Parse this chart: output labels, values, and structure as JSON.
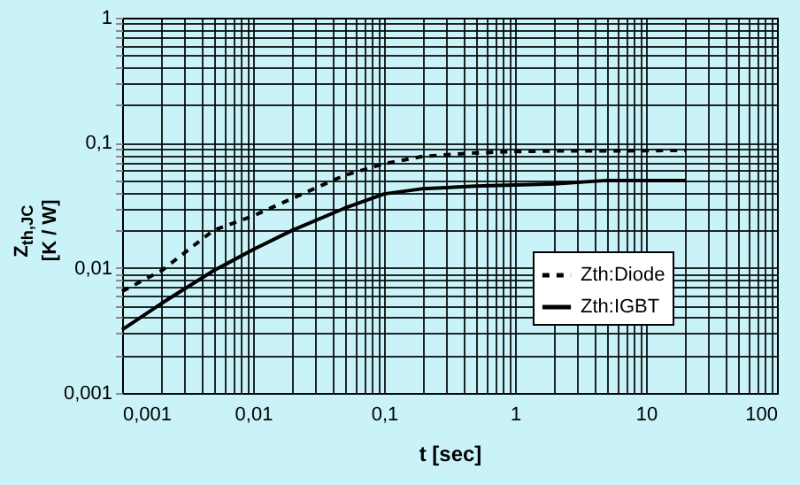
{
  "chart_data": {
    "type": "line",
    "xlabel": "t [sec]",
    "ylabel": "Z$_{th,JC}$ [K / W]",
    "log": "xy",
    "grid": true,
    "legend": "bottom right",
    "marker": "none",
    "xlim": [
      0.001,
      100
    ],
    "ylim": [
      0.001,
      1
    ],
    "xticks": [
      {
        "value": 0.001,
        "label": "0,001"
      },
      {
        "value": 0.002,
        "label": null
      },
      {
        "value": 0.003,
        "label": null
      },
      {
        "value": 0.004,
        "label": null
      },
      {
        "value": 0.005,
        "label": null
      },
      {
        "value": 0.006,
        "label": null
      },
      {
        "value": 0.007,
        "label": null
      },
      {
        "value": 0.008,
        "label": null
      },
      {
        "value": 0.009,
        "label": null
      },
      {
        "value": 0.01,
        "label": "0,01"
      },
      {
        "value": 0.02,
        "label": null
      },
      {
        "value": 0.03,
        "label": null
      },
      {
        "value": 0.04,
        "label": null
      },
      {
        "value": 0.05,
        "label": null
      },
      {
        "value": 0.06,
        "label": null
      },
      {
        "value": 0.07,
        "label": null
      },
      {
        "value": 0.08,
        "label": null
      },
      {
        "value": 0.09,
        "label": null
      },
      {
        "value": 0.1,
        "label": "0,1"
      },
      {
        "value": 0.2,
        "label": null
      },
      {
        "value": 0.3,
        "label": null
      },
      {
        "value": 0.4,
        "label": null
      },
      {
        "value": 0.5,
        "label": null
      },
      {
        "value": 0.6,
        "label": null
      },
      {
        "value": 0.7,
        "label": null
      },
      {
        "value": 0.8,
        "label": null
      },
      {
        "value": 0.9,
        "label": null
      },
      1,
      {
        "value": 2,
        "label": null
      },
      {
        "value": 3,
        "label": null
      },
      {
        "value": 4,
        "label": null
      },
      {
        "value": 5,
        "label": null
      },
      {
        "value": 6,
        "label": null
      },
      {
        "value": 7,
        "label": null
      },
      {
        "value": 8,
        "label": null
      },
      {
        "value": 9,
        "label": null
      },
      10,
      {
        "value": 20,
        "label": null
      },
      {
        "value": 30,
        "label": null
      },
      {
        "value": 40,
        "label": null
      },
      {
        "value": 50,
        "label": null
      },
      {
        "value": 60,
        "label": null
      },
      {
        "value": 70,
        "label": null
      },
      {
        "value": 80,
        "label": null
      },
      {
        "value": 90,
        "label": null
      },
      100
    ],
    "yticks": [
      {
        "value": 0.001,
        "label": "0,001"
      },
      {
        "value": 0.002,
        "label": null
      },
      {
        "value": 0.003,
        "label": null
      },
      {
        "value": 0.004,
        "label": null
      },
      {
        "value": 0.005,
        "label": null
      },
      {
        "value": 0.006,
        "label": null
      },
      {
        "value": 0.007,
        "label": null
      },
      {
        "value": 0.008,
        "label": null
      },
      {
        "value": 0.009,
        "label": null
      },
      {
        "value": 0.01,
        "label": "0,01"
      },
      {
        "value": 0.02,
        "label": null
      },
      {
        "value": 0.03,
        "label": null
      },
      {
        "value": 0.04,
        "label": null
      },
      {
        "value": 0.05,
        "label": null
      },
      {
        "value": 0.06,
        "label": null
      },
      {
        "value": 0.07,
        "label": null
      },
      {
        "value": 0.08,
        "label": null
      },
      {
        "value": 0.09,
        "label": null
      },
      {
        "value": 0.1,
        "label": "0,1"
      },
      {
        "value": 0.2,
        "label": null
      },
      {
        "value": 0.3,
        "label": null
      },
      {
        "value": 0.4,
        "label": null
      },
      {
        "value": 0.5,
        "label": null
      },
      {
        "value": 0.6,
        "label": null
      },
      {
        "value": 0.7,
        "label": null
      },
      {
        "value": 0.8,
        "label": null
      },
      {
        "value": 0.9,
        "label": null
      },
      1
    ],
    "x": [
      0.001,
      0.002,
      0.005,
      0.01,
      0.02,
      0.05,
      0.1,
      0.2,
      0.5,
      1,
      2,
      5,
      20
    ],
    "series": [
      {
        "name": "Zth:Diode",
        "color": "#000000",
        "line_style": "dashed",
        "values": [
          0.0065,
          0.0095,
          0.02,
          0.026,
          0.036,
          0.055,
          0.068,
          0.078,
          0.083,
          0.085,
          0.086,
          0.086,
          0.087
        ]
      },
      {
        "name": "Zth:IGBT",
        "color": "#000000",
        "line_style": "solid",
        "values": [
          0.0032,
          0.0052,
          0.0095,
          0.014,
          0.02,
          0.03,
          0.039,
          0.043,
          0.045,
          0.046,
          0.047,
          0.05,
          0.05
        ]
      }
    ]
  }
}
